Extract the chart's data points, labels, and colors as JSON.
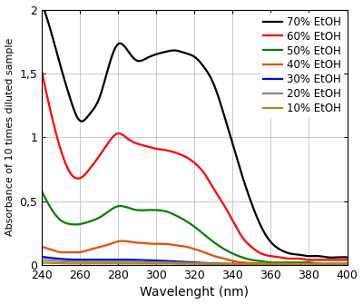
{
  "title": "",
  "xlabel": "Wavelenght (nm)",
  "ylabel": "Absorbance of 10 times diluted sample",
  "xlim": [
    240,
    400
  ],
  "ylim": [
    0,
    2
  ],
  "yticks": [
    0,
    0.5,
    1,
    1.5,
    2
  ],
  "ytick_labels": [
    "0",
    "0,5",
    "1",
    "1,5",
    "2"
  ],
  "xticks": [
    240,
    260,
    280,
    300,
    320,
    340,
    360,
    380,
    400
  ],
  "series": [
    {
      "label": "70% EtOH",
      "color": "#000000",
      "points": [
        [
          240,
          2.05
        ],
        [
          245,
          1.82
        ],
        [
          250,
          1.55
        ],
        [
          255,
          1.3
        ],
        [
          260,
          1.13
        ],
        [
          265,
          1.18
        ],
        [
          270,
          1.3
        ],
        [
          275,
          1.55
        ],
        [
          280,
          1.73
        ],
        [
          285,
          1.68
        ],
        [
          290,
          1.6
        ],
        [
          295,
          1.62
        ],
        [
          300,
          1.65
        ],
        [
          305,
          1.67
        ],
        [
          310,
          1.68
        ],
        [
          315,
          1.66
        ],
        [
          320,
          1.63
        ],
        [
          325,
          1.55
        ],
        [
          330,
          1.42
        ],
        [
          335,
          1.2
        ],
        [
          340,
          0.95
        ],
        [
          345,
          0.7
        ],
        [
          350,
          0.48
        ],
        [
          355,
          0.3
        ],
        [
          360,
          0.18
        ],
        [
          365,
          0.12
        ],
        [
          370,
          0.09
        ],
        [
          375,
          0.08
        ],
        [
          380,
          0.07
        ],
        [
          385,
          0.07
        ],
        [
          390,
          0.06
        ],
        [
          395,
          0.06
        ],
        [
          400,
          0.06
        ]
      ]
    },
    {
      "label": "60% EtOH",
      "color": "#ff0000",
      "points": [
        [
          240,
          1.52
        ],
        [
          245,
          1.18
        ],
        [
          250,
          0.9
        ],
        [
          255,
          0.72
        ],
        [
          260,
          0.68
        ],
        [
          265,
          0.75
        ],
        [
          270,
          0.85
        ],
        [
          275,
          0.96
        ],
        [
          280,
          1.03
        ],
        [
          285,
          0.99
        ],
        [
          290,
          0.95
        ],
        [
          295,
          0.93
        ],
        [
          300,
          0.91
        ],
        [
          305,
          0.9
        ],
        [
          310,
          0.88
        ],
        [
          315,
          0.85
        ],
        [
          320,
          0.8
        ],
        [
          325,
          0.72
        ],
        [
          330,
          0.6
        ],
        [
          335,
          0.48
        ],
        [
          340,
          0.35
        ],
        [
          345,
          0.22
        ],
        [
          350,
          0.14
        ],
        [
          355,
          0.09
        ],
        [
          360,
          0.07
        ],
        [
          365,
          0.06
        ],
        [
          370,
          0.05
        ],
        [
          375,
          0.05
        ],
        [
          380,
          0.04
        ],
        [
          385,
          0.04
        ],
        [
          390,
          0.04
        ],
        [
          395,
          0.04
        ],
        [
          400,
          0.04
        ]
      ]
    },
    {
      "label": "50% EtOH",
      "color": "#008000",
      "points": [
        [
          240,
          0.58
        ],
        [
          245,
          0.44
        ],
        [
          250,
          0.35
        ],
        [
          255,
          0.32
        ],
        [
          260,
          0.32
        ],
        [
          265,
          0.34
        ],
        [
          270,
          0.37
        ],
        [
          275,
          0.42
        ],
        [
          280,
          0.46
        ],
        [
          285,
          0.45
        ],
        [
          290,
          0.43
        ],
        [
          295,
          0.43
        ],
        [
          300,
          0.43
        ],
        [
          305,
          0.42
        ],
        [
          310,
          0.39
        ],
        [
          315,
          0.35
        ],
        [
          320,
          0.3
        ],
        [
          325,
          0.24
        ],
        [
          330,
          0.18
        ],
        [
          335,
          0.13
        ],
        [
          340,
          0.09
        ],
        [
          345,
          0.06
        ],
        [
          350,
          0.04
        ],
        [
          355,
          0.03
        ],
        [
          360,
          0.02
        ],
        [
          365,
          0.02
        ],
        [
          370,
          0.02
        ],
        [
          375,
          0.02
        ],
        [
          380,
          0.02
        ],
        [
          385,
          0.01
        ],
        [
          390,
          0.01
        ],
        [
          395,
          0.01
        ],
        [
          400,
          0.01
        ]
      ]
    },
    {
      "label": "40% EtOH",
      "color": "#e05000",
      "points": [
        [
          240,
          0.14
        ],
        [
          245,
          0.12
        ],
        [
          250,
          0.1
        ],
        [
          255,
          0.1
        ],
        [
          260,
          0.1
        ],
        [
          265,
          0.12
        ],
        [
          270,
          0.14
        ],
        [
          275,
          0.16
        ],
        [
          280,
          0.185
        ],
        [
          285,
          0.185
        ],
        [
          290,
          0.175
        ],
        [
          295,
          0.17
        ],
        [
          300,
          0.165
        ],
        [
          305,
          0.165
        ],
        [
          310,
          0.155
        ],
        [
          315,
          0.145
        ],
        [
          320,
          0.125
        ],
        [
          325,
          0.1
        ],
        [
          330,
          0.072
        ],
        [
          335,
          0.052
        ],
        [
          340,
          0.032
        ],
        [
          345,
          0.02
        ],
        [
          350,
          0.015
        ],
        [
          355,
          0.012
        ],
        [
          360,
          0.01
        ],
        [
          365,
          0.01
        ],
        [
          370,
          0.01
        ],
        [
          375,
          0.01
        ],
        [
          380,
          0.01
        ],
        [
          385,
          0.01
        ],
        [
          390,
          0.01
        ],
        [
          395,
          0.01
        ],
        [
          400,
          0.01
        ]
      ]
    },
    {
      "label": "30% EtOH",
      "color": "#0000dd",
      "points": [
        [
          240,
          0.065
        ],
        [
          245,
          0.055
        ],
        [
          250,
          0.048
        ],
        [
          255,
          0.043
        ],
        [
          260,
          0.042
        ],
        [
          265,
          0.042
        ],
        [
          270,
          0.042
        ],
        [
          275,
          0.042
        ],
        [
          280,
          0.042
        ],
        [
          285,
          0.042
        ],
        [
          290,
          0.04
        ],
        [
          295,
          0.038
        ],
        [
          300,
          0.035
        ],
        [
          305,
          0.032
        ],
        [
          310,
          0.028
        ],
        [
          315,
          0.024
        ],
        [
          320,
          0.02
        ],
        [
          325,
          0.015
        ],
        [
          330,
          0.012
        ],
        [
          335,
          0.01
        ],
        [
          340,
          0.008
        ],
        [
          345,
          0.007
        ],
        [
          350,
          0.006
        ],
        [
          355,
          0.005
        ],
        [
          360,
          0.005
        ],
        [
          365,
          0.005
        ],
        [
          370,
          0.005
        ],
        [
          375,
          0.005
        ],
        [
          380,
          0.005
        ],
        [
          385,
          0.005
        ],
        [
          390,
          0.005
        ],
        [
          395,
          0.005
        ],
        [
          400,
          0.005
        ]
      ]
    },
    {
      "label": "20% EtOH",
      "color": "#888888",
      "points": [
        [
          240,
          0.04
        ],
        [
          245,
          0.035
        ],
        [
          250,
          0.03
        ],
        [
          255,
          0.028
        ],
        [
          260,
          0.027
        ],
        [
          265,
          0.027
        ],
        [
          270,
          0.027
        ],
        [
          275,
          0.027
        ],
        [
          280,
          0.027
        ],
        [
          285,
          0.027
        ],
        [
          290,
          0.025
        ],
        [
          295,
          0.023
        ],
        [
          300,
          0.022
        ],
        [
          305,
          0.021
        ],
        [
          310,
          0.018
        ],
        [
          315,
          0.016
        ],
        [
          320,
          0.015
        ],
        [
          325,
          0.012
        ],
        [
          330,
          0.01
        ],
        [
          335,
          0.009
        ],
        [
          340,
          0.008
        ],
        [
          345,
          0.007
        ],
        [
          350,
          0.006
        ],
        [
          355,
          0.005
        ],
        [
          360,
          0.005
        ],
        [
          365,
          0.005
        ],
        [
          370,
          0.005
        ],
        [
          375,
          0.005
        ],
        [
          380,
          0.005
        ],
        [
          385,
          0.005
        ],
        [
          390,
          0.005
        ],
        [
          395,
          0.005
        ],
        [
          400,
          0.005
        ]
      ]
    },
    {
      "label": "10% EtOH",
      "color": "#b8860b",
      "points": [
        [
          240,
          0.018
        ],
        [
          245,
          0.016
        ],
        [
          250,
          0.014
        ],
        [
          255,
          0.012
        ],
        [
          260,
          0.012
        ],
        [
          265,
          0.013
        ],
        [
          270,
          0.013
        ],
        [
          275,
          0.013
        ],
        [
          280,
          0.013
        ],
        [
          285,
          0.013
        ],
        [
          290,
          0.013
        ],
        [
          295,
          0.012
        ],
        [
          300,
          0.012
        ],
        [
          305,
          0.012
        ],
        [
          310,
          0.01
        ],
        [
          315,
          0.01
        ],
        [
          320,
          0.01
        ],
        [
          325,
          0.009
        ],
        [
          330,
          0.008
        ],
        [
          335,
          0.008
        ],
        [
          340,
          0.008
        ],
        [
          345,
          0.008
        ],
        [
          350,
          0.008
        ],
        [
          355,
          0.008
        ],
        [
          360,
          0.008
        ],
        [
          365,
          0.008
        ],
        [
          370,
          0.008
        ],
        [
          375,
          0.008
        ],
        [
          380,
          0.008
        ],
        [
          385,
          0.008
        ],
        [
          390,
          0.008
        ],
        [
          395,
          0.008
        ],
        [
          400,
          0.008
        ]
      ]
    }
  ],
  "legend_fontsize": 8.5,
  "tick_fontsize": 9,
  "xlabel_fontsize": 10,
  "ylabel_fontsize": 8.0,
  "linewidth": 1.6,
  "grid_color": "#c0c0c0",
  "grid_lw": 0.6
}
